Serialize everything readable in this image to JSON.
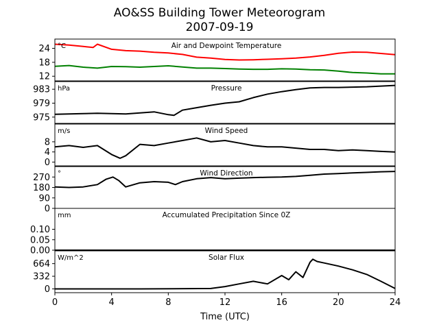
{
  "chart_data": {
    "type": "line",
    "title": "AO&SS Building Tower Meteorogram",
    "subtitle": "2007-09-19",
    "xlabel": "Time (UTC)",
    "xlim": [
      0,
      24
    ],
    "xticks": [
      "0",
      "4",
      "8",
      "12",
      "16",
      "20",
      "24"
    ],
    "panels": [
      {
        "title": "Air and Dewpoint Temperature",
        "unit": "°C",
        "ylim": [
          10,
          28
        ],
        "yticks": [
          "12",
          "18",
          "24"
        ],
        "series": [
          {
            "color": "#ff0000",
            "x": [
              0,
              1,
              2,
              2.7,
              3.0,
              4,
              5,
              6,
              7,
              8,
              9,
              10,
              11,
              12,
              13,
              14,
              15,
              16,
              17,
              18,
              19,
              20,
              21,
              22,
              23,
              24
            ],
            "y": [
              25.8,
              25.4,
              24.8,
              24.4,
              25.8,
              23.6,
              23.0,
              22.8,
              22.3,
              22.0,
              21.4,
              20.2,
              19.8,
              19.2,
              19.0,
              19.1,
              19.3,
              19.5,
              19.8,
              20.3,
              21.0,
              21.9,
              22.4,
              22.3,
              21.8,
              21.3
            ]
          },
          {
            "color": "#008000",
            "x": [
              0,
              1,
              2,
              3,
              4,
              5,
              6,
              7,
              8,
              9,
              10,
              11,
              12,
              13,
              14,
              15,
              16,
              17,
              18,
              19,
              20,
              21,
              22,
              23,
              24
            ],
            "y": [
              16.3,
              16.6,
              15.9,
              15.5,
              16.2,
              16.1,
              15.9,
              16.2,
              16.5,
              16.0,
              15.5,
              15.5,
              15.3,
              15.1,
              15.0,
              15.0,
              15.2,
              15.1,
              14.8,
              14.7,
              14.2,
              13.6,
              13.4,
              13.0,
              13.0
            ]
          }
        ]
      },
      {
        "title": "Pressure",
        "unit": "hPa",
        "ylim": [
          973.2,
          985.2
        ],
        "yticks": [
          "975",
          "979",
          "983"
        ],
        "series": [
          {
            "color": "#000000",
            "x": [
              0,
              1,
              2,
              3,
              4,
              5,
              6,
              7,
              8,
              8.4,
              9,
              10,
              11,
              12,
              13,
              14,
              15,
              16,
              17,
              18,
              19,
              20,
              21,
              22,
              23,
              24
            ],
            "y": [
              975.8,
              975.9,
              976.0,
              976.1,
              976.0,
              975.9,
              976.2,
              976.5,
              975.7,
              975.5,
              977.0,
              977.7,
              978.4,
              979.0,
              979.4,
              980.6,
              981.6,
              982.3,
              982.9,
              983.4,
              983.5,
              983.5,
              983.6,
              983.7,
              983.9,
              984.1
            ]
          }
        ]
      },
      {
        "title": "Wind Speed",
        "unit": "m/s",
        "ylim": [
          -1.5,
          15
        ],
        "yticks": [
          "0",
          "4",
          "8"
        ],
        "series": [
          {
            "color": "#000000",
            "x": [
              0,
              1,
              2,
              3,
              4,
              4.6,
              5,
              6,
              7,
              8,
              9,
              10,
              11,
              12,
              13,
              14,
              15,
              16,
              17,
              18,
              19,
              20,
              21,
              22,
              23,
              24
            ],
            "y": [
              6.0,
              6.5,
              5.8,
              6.5,
              3.0,
              1.5,
              2.5,
              7.0,
              6.5,
              7.5,
              8.5,
              9.5,
              8.0,
              8.5,
              7.5,
              6.5,
              6.0,
              6.0,
              5.5,
              5.0,
              5.0,
              4.5,
              4.8,
              4.5,
              4.2,
              4.0
            ]
          }
        ]
      },
      {
        "title": "Wind Direction",
        "unit": "°",
        "ylim": [
          0,
          360
        ],
        "yticks": [
          "0",
          "90",
          "180",
          "270"
        ],
        "series": [
          {
            "color": "#000000",
            "x": [
              0,
              1,
              2,
              3,
              3.6,
              4.1,
              4.5,
              5,
              6,
              7,
              8,
              8.5,
              9,
              10,
              11,
              12,
              13,
              14,
              15,
              16,
              17,
              18,
              19,
              20,
              21,
              22,
              23,
              24
            ],
            "y": [
              185,
              180,
              185,
              205,
              250,
              270,
              240,
              185,
              220,
              230,
              225,
              205,
              230,
              255,
              265,
              255,
              260,
              265,
              268,
              270,
              275,
              285,
              295,
              300,
              305,
              310,
              315,
              318
            ]
          }
        ]
      },
      {
        "title": "Accumulated Precipitation Since 0Z",
        "unit": "mm",
        "ylim": [
          0,
          0.2
        ],
        "yticks": [
          "0.00",
          "0.05",
          "0.10"
        ],
        "series": [
          {
            "color": "#000000",
            "x": [
              0,
              24
            ],
            "y": [
              0,
              0
            ]
          }
        ]
      },
      {
        "title": "Solar Flux",
        "unit": "W/m^2",
        "ylim": [
          -100,
          1000
        ],
        "yticks": [
          "0",
          "332",
          "664"
        ],
        "series": [
          {
            "color": "#000000",
            "x": [
              0,
              6,
              11,
              12,
              13,
              14,
              15,
              16,
              16.5,
              17,
              17.5,
              18,
              18.2,
              18.5,
              19,
              20,
              21,
              22,
              23,
              24
            ],
            "y": [
              0,
              0,
              10,
              60,
              130,
              200,
              130,
              350,
              240,
              450,
              300,
              700,
              780,
              720,
              680,
              600,
              500,
              380,
              200,
              10
            ]
          }
        ]
      }
    ]
  }
}
